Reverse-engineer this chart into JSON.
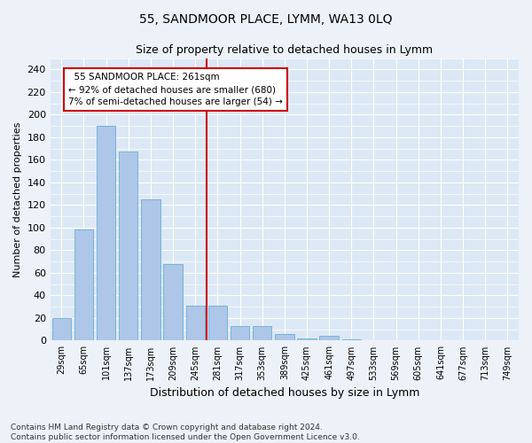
{
  "title": "55, SANDMOOR PLACE, LYMM, WA13 0LQ",
  "subtitle": "Size of property relative to detached houses in Lymm",
  "xlabel": "Distribution of detached houses by size in Lymm",
  "ylabel": "Number of detached properties",
  "categories": [
    "29sqm",
    "65sqm",
    "101sqm",
    "137sqm",
    "173sqm",
    "209sqm",
    "245sqm",
    "281sqm",
    "317sqm",
    "353sqm",
    "389sqm",
    "425sqm",
    "461sqm",
    "497sqm",
    "533sqm",
    "569sqm",
    "605sqm",
    "641sqm",
    "677sqm",
    "713sqm",
    "749sqm"
  ],
  "values": [
    20,
    98,
    190,
    167,
    125,
    68,
    31,
    31,
    13,
    13,
    6,
    2,
    4,
    1,
    0,
    0,
    0,
    0,
    0,
    0,
    0
  ],
  "bar_color": "#aec6e8",
  "bar_edge_color": "#6aaed6",
  "annotation_text": "  55 SANDMOOR PLACE: 261sqm\n← 92% of detached houses are smaller (680)\n7% of semi-detached houses are larger (54) →",
  "annotation_box_color": "#ffffff",
  "annotation_box_edge_color": "#cc0000",
  "vline_color": "#cc0000",
  "ylim": [
    0,
    250
  ],
  "yticks": [
    0,
    20,
    40,
    60,
    80,
    100,
    120,
    140,
    160,
    180,
    200,
    220,
    240
  ],
  "footnote": "Contains HM Land Registry data © Crown copyright and database right 2024.\nContains public sector information licensed under the Open Government Licence v3.0.",
  "background_color": "#edf2f9",
  "plot_background_color": "#dce8f5",
  "grid_color": "#ffffff",
  "title_fontsize": 10,
  "subtitle_fontsize": 9,
  "ylabel_fontsize": 8,
  "xlabel_fontsize": 9,
  "tick_fontsize": 8,
  "xtick_fontsize": 7,
  "footnote_fontsize": 6.5
}
